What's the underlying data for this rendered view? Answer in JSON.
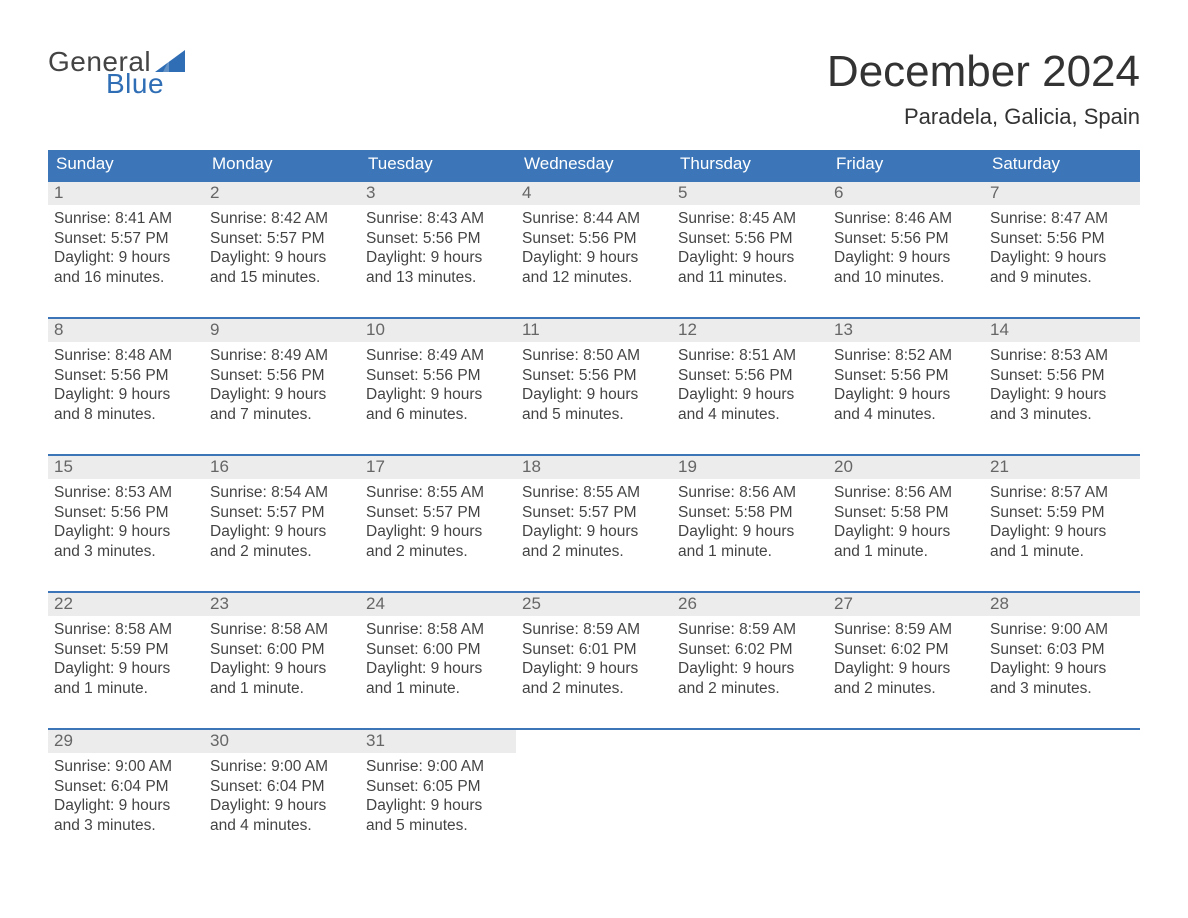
{
  "logo": {
    "text_general": "General",
    "text_blue": "Blue",
    "sail_color": "#2f6eb5",
    "general_color": "#444444",
    "blue_color": "#2f6eb5"
  },
  "header": {
    "month_title": "December 2024",
    "location": "Paradela, Galicia, Spain",
    "title_color": "#333333",
    "title_fontsize": 44,
    "location_fontsize": 22
  },
  "colors": {
    "header_bar_bg": "#3d76b8",
    "header_bar_text": "#ffffff",
    "week_border": "#3d76b8",
    "daynum_bg": "#ececec",
    "daynum_text": "#666666",
    "body_text": "#444444",
    "page_bg": "#ffffff"
  },
  "weekdays": [
    "Sunday",
    "Monday",
    "Tuesday",
    "Wednesday",
    "Thursday",
    "Friday",
    "Saturday"
  ],
  "weeks": [
    [
      {
        "n": "1",
        "sunrise": "8:41 AM",
        "sunset": "5:57 PM",
        "daylight": "9 hours and 16 minutes."
      },
      {
        "n": "2",
        "sunrise": "8:42 AM",
        "sunset": "5:57 PM",
        "daylight": "9 hours and 15 minutes."
      },
      {
        "n": "3",
        "sunrise": "8:43 AM",
        "sunset": "5:56 PM",
        "daylight": "9 hours and 13 minutes."
      },
      {
        "n": "4",
        "sunrise": "8:44 AM",
        "sunset": "5:56 PM",
        "daylight": "9 hours and 12 minutes."
      },
      {
        "n": "5",
        "sunrise": "8:45 AM",
        "sunset": "5:56 PM",
        "daylight": "9 hours and 11 minutes."
      },
      {
        "n": "6",
        "sunrise": "8:46 AM",
        "sunset": "5:56 PM",
        "daylight": "9 hours and 10 minutes."
      },
      {
        "n": "7",
        "sunrise": "8:47 AM",
        "sunset": "5:56 PM",
        "daylight": "9 hours and 9 minutes."
      }
    ],
    [
      {
        "n": "8",
        "sunrise": "8:48 AM",
        "sunset": "5:56 PM",
        "daylight": "9 hours and 8 minutes."
      },
      {
        "n": "9",
        "sunrise": "8:49 AM",
        "sunset": "5:56 PM",
        "daylight": "9 hours and 7 minutes."
      },
      {
        "n": "10",
        "sunrise": "8:49 AM",
        "sunset": "5:56 PM",
        "daylight": "9 hours and 6 minutes."
      },
      {
        "n": "11",
        "sunrise": "8:50 AM",
        "sunset": "5:56 PM",
        "daylight": "9 hours and 5 minutes."
      },
      {
        "n": "12",
        "sunrise": "8:51 AM",
        "sunset": "5:56 PM",
        "daylight": "9 hours and 4 minutes."
      },
      {
        "n": "13",
        "sunrise": "8:52 AM",
        "sunset": "5:56 PM",
        "daylight": "9 hours and 4 minutes."
      },
      {
        "n": "14",
        "sunrise": "8:53 AM",
        "sunset": "5:56 PM",
        "daylight": "9 hours and 3 minutes."
      }
    ],
    [
      {
        "n": "15",
        "sunrise": "8:53 AM",
        "sunset": "5:56 PM",
        "daylight": "9 hours and 3 minutes."
      },
      {
        "n": "16",
        "sunrise": "8:54 AM",
        "sunset": "5:57 PM",
        "daylight": "9 hours and 2 minutes."
      },
      {
        "n": "17",
        "sunrise": "8:55 AM",
        "sunset": "5:57 PM",
        "daylight": "9 hours and 2 minutes."
      },
      {
        "n": "18",
        "sunrise": "8:55 AM",
        "sunset": "5:57 PM",
        "daylight": "9 hours and 2 minutes."
      },
      {
        "n": "19",
        "sunrise": "8:56 AM",
        "sunset": "5:58 PM",
        "daylight": "9 hours and 1 minute."
      },
      {
        "n": "20",
        "sunrise": "8:56 AM",
        "sunset": "5:58 PM",
        "daylight": "9 hours and 1 minute."
      },
      {
        "n": "21",
        "sunrise": "8:57 AM",
        "sunset": "5:59 PM",
        "daylight": "9 hours and 1 minute."
      }
    ],
    [
      {
        "n": "22",
        "sunrise": "8:58 AM",
        "sunset": "5:59 PM",
        "daylight": "9 hours and 1 minute."
      },
      {
        "n": "23",
        "sunrise": "8:58 AM",
        "sunset": "6:00 PM",
        "daylight": "9 hours and 1 minute."
      },
      {
        "n": "24",
        "sunrise": "8:58 AM",
        "sunset": "6:00 PM",
        "daylight": "9 hours and 1 minute."
      },
      {
        "n": "25",
        "sunrise": "8:59 AM",
        "sunset": "6:01 PM",
        "daylight": "9 hours and 2 minutes."
      },
      {
        "n": "26",
        "sunrise": "8:59 AM",
        "sunset": "6:02 PM",
        "daylight": "9 hours and 2 minutes."
      },
      {
        "n": "27",
        "sunrise": "8:59 AM",
        "sunset": "6:02 PM",
        "daylight": "9 hours and 2 minutes."
      },
      {
        "n": "28",
        "sunrise": "9:00 AM",
        "sunset": "6:03 PM",
        "daylight": "9 hours and 3 minutes."
      }
    ],
    [
      {
        "n": "29",
        "sunrise": "9:00 AM",
        "sunset": "6:04 PM",
        "daylight": "9 hours and 3 minutes."
      },
      {
        "n": "30",
        "sunrise": "9:00 AM",
        "sunset": "6:04 PM",
        "daylight": "9 hours and 4 minutes."
      },
      {
        "n": "31",
        "sunrise": "9:00 AM",
        "sunset": "6:05 PM",
        "daylight": "9 hours and 5 minutes."
      },
      null,
      null,
      null,
      null
    ]
  ],
  "labels": {
    "sunrise_prefix": "Sunrise: ",
    "sunset_prefix": "Sunset: ",
    "daylight_prefix": "Daylight: "
  }
}
